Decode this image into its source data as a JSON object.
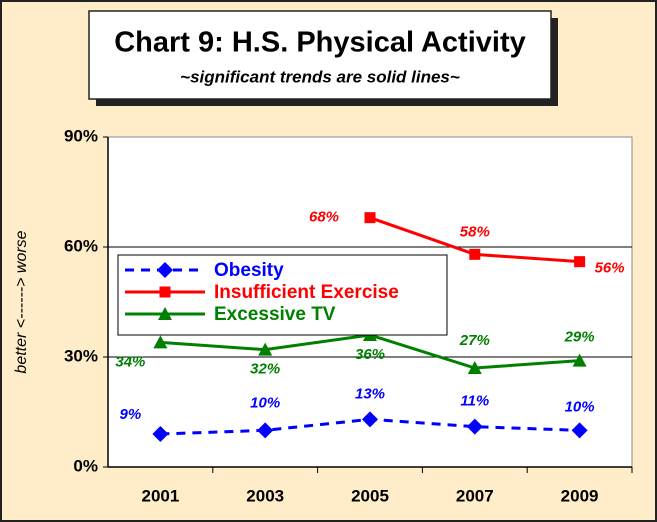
{
  "chart_data": {
    "type": "line",
    "title": "Chart 9:  H.S. Physical Activity",
    "subtitle": "~significant trends are solid lines~",
    "y_label": "better <------> worse",
    "categories": [
      "2001",
      "2003",
      "2005",
      "2007",
      "2009"
    ],
    "series": [
      {
        "name": "Obesity",
        "color": "#0000ff",
        "marker": "diamond",
        "line_style": "dashed",
        "values": [
          9,
          10,
          13,
          11,
          10
        ],
        "value_labels": [
          "9%",
          "10%",
          "13%",
          "11%",
          "10%"
        ]
      },
      {
        "name": "Insufficient Exercise",
        "color": "#ff0000",
        "marker": "square",
        "line_style": "solid",
        "values": [
          null,
          null,
          68,
          58,
          56
        ],
        "value_labels": [
          null,
          null,
          "68%",
          "58%",
          "56%"
        ]
      },
      {
        "name": "Excessive TV",
        "color": "#008000",
        "marker": "triangle",
        "line_style": "solid",
        "values": [
          34,
          32,
          36,
          27,
          29
        ],
        "value_labels": [
          "34%",
          "32%",
          "36%",
          "27%",
          "29%"
        ]
      }
    ],
    "ylim": [
      0,
      90
    ],
    "yticks": [
      {
        "value": 0,
        "label": "0%"
      },
      {
        "value": 30,
        "label": "30%"
      },
      {
        "value": 60,
        "label": "60%"
      },
      {
        "value": 90,
        "label": "90%"
      }
    ],
    "grid": true,
    "legend": "center-left"
  }
}
